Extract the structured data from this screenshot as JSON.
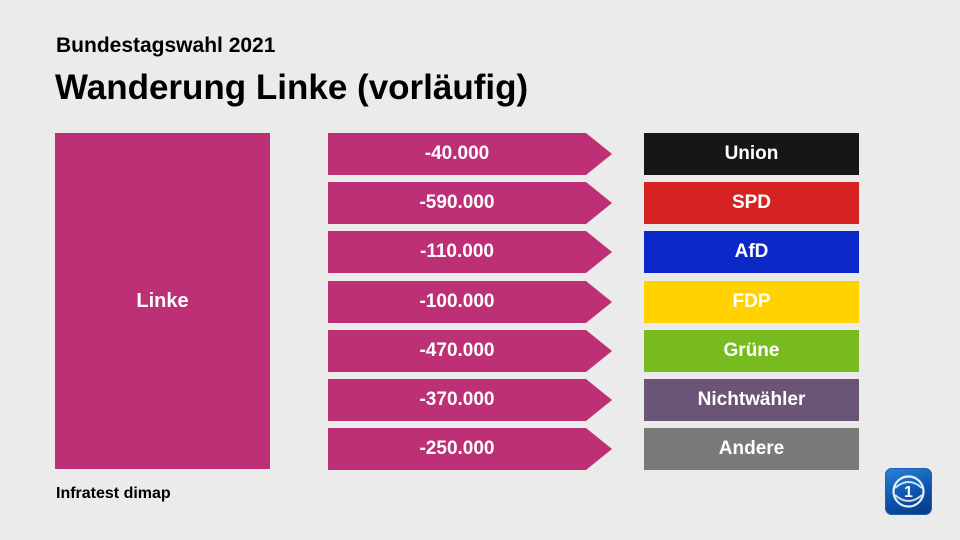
{
  "header": {
    "supertitle": "Bundestagswahl 2021",
    "title": "Wanderung Linke (vorläufig)"
  },
  "footer": {
    "source": "Infratest dimap"
  },
  "logo": {
    "icon": "ard-tagesschau-logo-icon"
  },
  "colors": {
    "background": "#ebebeb",
    "source_party": "#be3075",
    "arrow": "#be3075"
  },
  "chart_data": {
    "type": "flow",
    "source": "Linke",
    "flows": [
      {
        "label": "-40.000",
        "value": -40000,
        "target": "Union",
        "color": "#161616"
      },
      {
        "label": "-590.000",
        "value": -590000,
        "target": "SPD",
        "color": "#d72222"
      },
      {
        "label": "-110.000",
        "value": -110000,
        "target": "AfD",
        "color": "#0a29c8"
      },
      {
        "label": "-100.000",
        "value": -100000,
        "target": "FDP",
        "color": "#ffd200"
      },
      {
        "label": "-470.000",
        "value": -470000,
        "target": "Grüne",
        "color": "#77bb1f"
      },
      {
        "label": "-370.000",
        "value": -370000,
        "target": "Nichtwähler",
        "color": "#6b5577"
      },
      {
        "label": "-250.000",
        "value": -250000,
        "target": "Andere",
        "color": "#7a7a7a"
      }
    ]
  }
}
